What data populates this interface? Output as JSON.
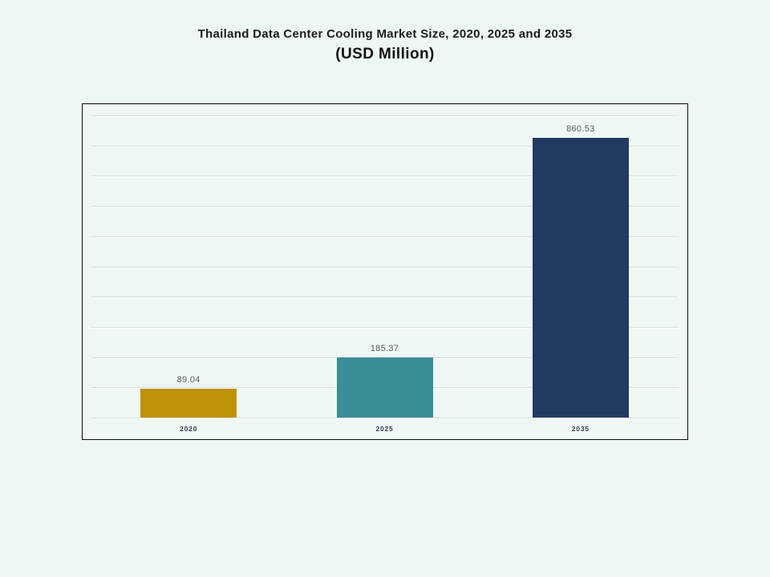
{
  "title": {
    "line1": "Thailand Data Center Cooling Market Size, 2020, 2025 and 2035",
    "line2": "(USD Million)"
  },
  "chart_data": {
    "type": "bar",
    "title": "Thailand Data Center Cooling Market Size, 2020, 2025 and 2035",
    "subtitle": "(USD Million)",
    "categories": [
      "2020",
      "2025",
      "2035"
    ],
    "values": [
      89.04,
      185.37,
      860.53
    ],
    "value_labels": [
      "89.04",
      "185.37",
      "860.53"
    ],
    "xlabel": "",
    "ylabel": "",
    "ylim": [
      0,
      930
    ],
    "y_axis_labels_visible": false,
    "gridline_count": 11,
    "grid": "horizontal",
    "legend_position": "none",
    "bar_colors": [
      "#BE9209",
      "#398E97",
      "#223A62"
    ]
  },
  "colors": {
    "page_background": "#EDF7F4",
    "plot_background": "#EFF8F5",
    "plot_border": "#0A0A0A",
    "gridline": "#D8DEDC",
    "title_text": "#1C1C1C",
    "value_label_text": "#565C63",
    "category_label_text": "#2C3E50"
  }
}
